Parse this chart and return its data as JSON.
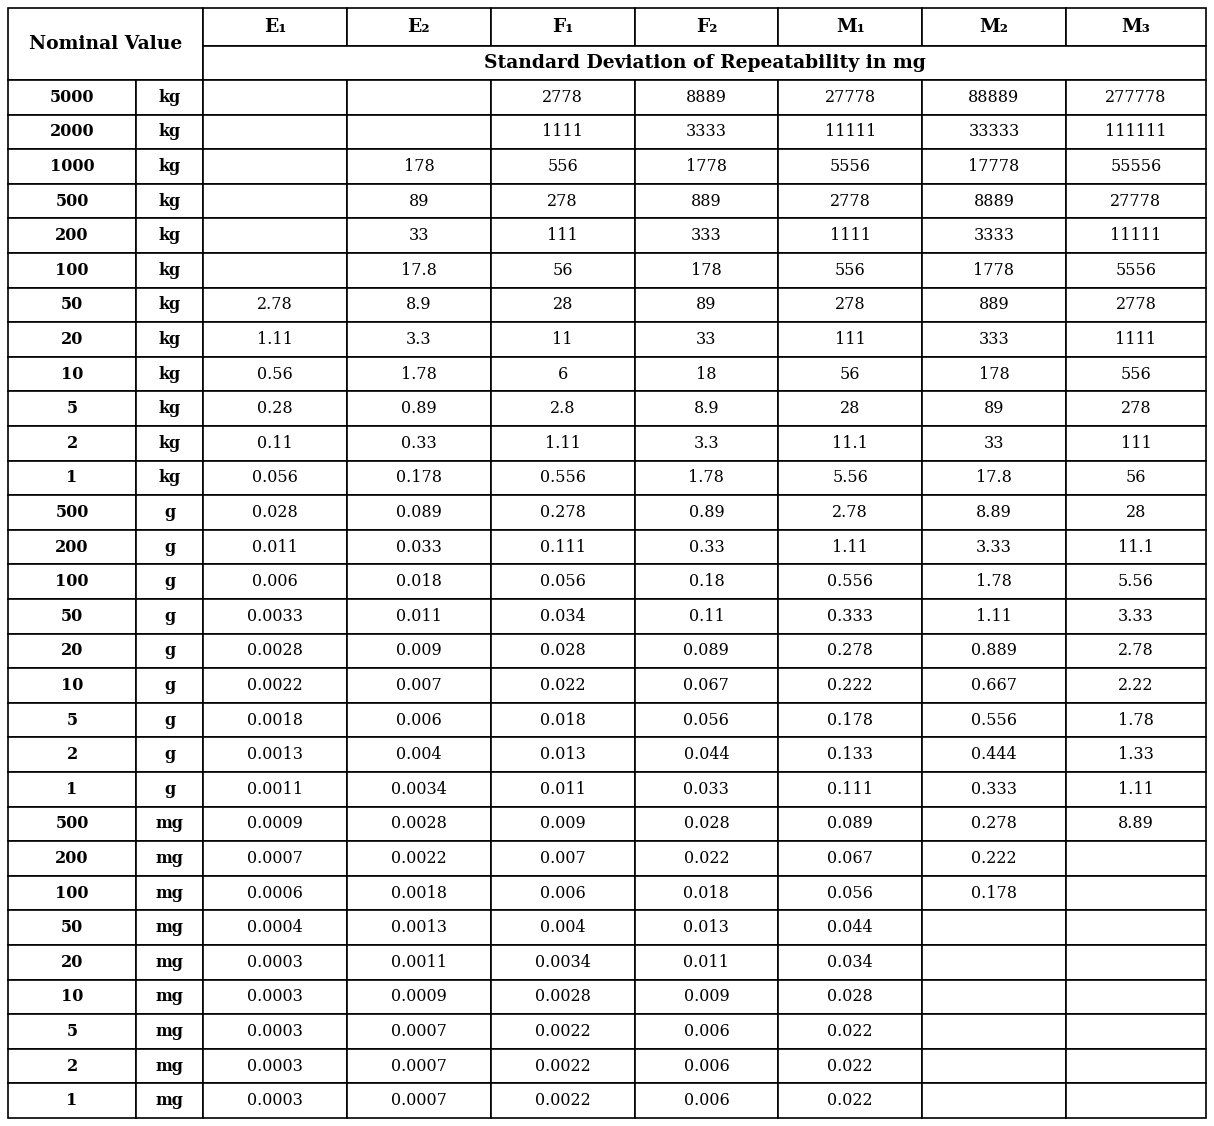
{
  "col_headers_row1": [
    "E$_1$",
    "E$_2$",
    "F$_1$",
    "F$_2$",
    "M$_1$",
    "M$_2$",
    "M$_3$"
  ],
  "col_headers_row1_display": [
    "E₁",
    "E₂",
    "F₁",
    "F₂",
    "M₁",
    "M₂",
    "M₃"
  ],
  "col_headers_row2": "Standard Deviation of Repeatability in mg",
  "nominal_values": [
    "5000",
    "2000",
    "1000",
    "500",
    "200",
    "100",
    "50",
    "20",
    "10",
    "5",
    "2",
    "1",
    "500",
    "200",
    "100",
    "50",
    "20",
    "10",
    "5",
    "2",
    "1",
    "500",
    "200",
    "100",
    "50",
    "20",
    "10",
    "5",
    "2",
    "1"
  ],
  "units": [
    "kg",
    "kg",
    "kg",
    "kg",
    "kg",
    "kg",
    "kg",
    "kg",
    "kg",
    "kg",
    "kg",
    "kg",
    "g",
    "g",
    "g",
    "g",
    "g",
    "g",
    "g",
    "g",
    "g",
    "mg",
    "mg",
    "mg",
    "mg",
    "mg",
    "mg",
    "mg",
    "mg",
    "mg"
  ],
  "table_data": [
    [
      "",
      "",
      "2778",
      "8889",
      "27778",
      "88889",
      "277778"
    ],
    [
      "",
      "",
      "1111",
      "3333",
      "11111",
      "33333",
      "111111"
    ],
    [
      "",
      "178",
      "556",
      "1778",
      "5556",
      "17778",
      "55556"
    ],
    [
      "",
      "89",
      "278",
      "889",
      "2778",
      "8889",
      "27778"
    ],
    [
      "",
      "33",
      "111",
      "333",
      "1111",
      "3333",
      "11111"
    ],
    [
      "",
      "17.8",
      "56",
      "178",
      "556",
      "1778",
      "5556"
    ],
    [
      "2.78",
      "8.9",
      "28",
      "89",
      "278",
      "889",
      "2778"
    ],
    [
      "1.11",
      "3.3",
      "11",
      "33",
      "111",
      "333",
      "1111"
    ],
    [
      "0.56",
      "1.78",
      "6",
      "18",
      "56",
      "178",
      "556"
    ],
    [
      "0.28",
      "0.89",
      "2.8",
      "8.9",
      "28",
      "89",
      "278"
    ],
    [
      "0.11",
      "0.33",
      "1.11",
      "3.3",
      "11.1",
      "33",
      "111"
    ],
    [
      "0.056",
      "0.178",
      "0.556",
      "1.78",
      "5.56",
      "17.8",
      "56"
    ],
    [
      "0.028",
      "0.089",
      "0.278",
      "0.89",
      "2.78",
      "8.89",
      "28"
    ],
    [
      "0.011",
      "0.033",
      "0.111",
      "0.33",
      "1.11",
      "3.33",
      "11.1"
    ],
    [
      "0.006",
      "0.018",
      "0.056",
      "0.18",
      "0.556",
      "1.78",
      "5.56"
    ],
    [
      "0.0033",
      "0.011",
      "0.034",
      "0.11",
      "0.333",
      "1.11",
      "3.33"
    ],
    [
      "0.0028",
      "0.009",
      "0.028",
      "0.089",
      "0.278",
      "0.889",
      "2.78"
    ],
    [
      "0.0022",
      "0.007",
      "0.022",
      "0.067",
      "0.222",
      "0.667",
      "2.22"
    ],
    [
      "0.0018",
      "0.006",
      "0.018",
      "0.056",
      "0.178",
      "0.556",
      "1.78"
    ],
    [
      "0.0013",
      "0.004",
      "0.013",
      "0.044",
      "0.133",
      "0.444",
      "1.33"
    ],
    [
      "0.0011",
      "0.0034",
      "0.011",
      "0.033",
      "0.111",
      "0.333",
      "1.11"
    ],
    [
      "0.0009",
      "0.0028",
      "0.009",
      "0.028",
      "0.089",
      "0.278",
      "8.89"
    ],
    [
      "0.0007",
      "0.0022",
      "0.007",
      "0.022",
      "0.067",
      "0.222",
      ""
    ],
    [
      "0.0006",
      "0.0018",
      "0.006",
      "0.018",
      "0.056",
      "0.178",
      ""
    ],
    [
      "0.0004",
      "0.0013",
      "0.004",
      "0.013",
      "0.044",
      "",
      ""
    ],
    [
      "0.0003",
      "0.0011",
      "0.0034",
      "0.011",
      "0.034",
      "",
      ""
    ],
    [
      "0.0003",
      "0.0009",
      "0.0028",
      "0.009",
      "0.028",
      "",
      ""
    ],
    [
      "0.0003",
      "0.0007",
      "0.0022",
      "0.006",
      "0.022",
      "",
      ""
    ],
    [
      "0.0003",
      "0.0007",
      "0.0022",
      "0.006",
      "0.022",
      "",
      ""
    ],
    [
      "0.0003",
      "0.0007",
      "0.0022",
      "0.006",
      "0.022",
      "",
      ""
    ]
  ],
  "bg_color": "#ffffff",
  "border_color": "#000000",
  "text_color": "#000000",
  "header_fontsize": 13.5,
  "cell_fontsize": 11.5,
  "lw": 1.2
}
